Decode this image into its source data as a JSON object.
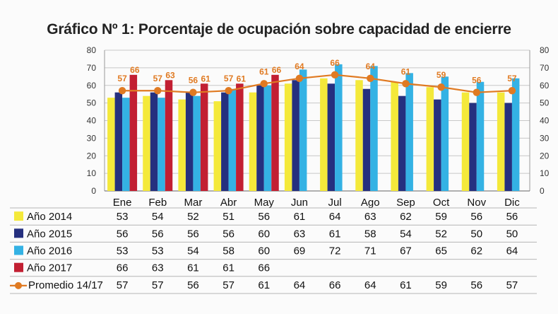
{
  "title": "Gráfico Nº 1: Porcentaje de ocupación sobre capacidad de encierre",
  "chart_data": {
    "type": "bar",
    "title": "Gráfico Nº 1: Porcentaje de ocupación sobre capacidad de encierre",
    "categories": [
      "Ene",
      "Feb",
      "Mar",
      "Abr",
      "May",
      "Jun",
      "Jul",
      "Ago",
      "Sep",
      "Oct",
      "Nov",
      "Dic"
    ],
    "ylim": [
      0,
      80
    ],
    "yticks": [
      0,
      10,
      20,
      30,
      40,
      50,
      60,
      70,
      80
    ],
    "grid": true,
    "legend_placement": "table below chart",
    "series": [
      {
        "name": "Año 2014",
        "type": "bar",
        "color": "#f4e93a",
        "values": [
          53,
          54,
          52,
          51,
          56,
          61,
          64,
          63,
          62,
          59,
          56,
          56
        ]
      },
      {
        "name": "Año 2015",
        "type": "bar",
        "color": "#25307f",
        "values": [
          56,
          56,
          56,
          56,
          60,
          63,
          61,
          58,
          54,
          52,
          50,
          50
        ]
      },
      {
        "name": "Año 2016",
        "type": "bar",
        "color": "#34b2e4",
        "values": [
          53,
          53,
          54,
          58,
          60,
          69,
          72,
          71,
          67,
          65,
          62,
          64
        ]
      },
      {
        "name": "Año 2017",
        "type": "bar",
        "color": "#c21f32",
        "values": [
          66,
          63,
          61,
          61,
          66,
          null,
          null,
          null,
          null,
          null,
          null,
          null
        ]
      },
      {
        "name": "Promedio 14/17",
        "type": "line",
        "color": "#e07a22",
        "values": [
          57,
          57,
          56,
          57,
          61,
          64,
          66,
          64,
          61,
          59,
          56,
          57
        ]
      }
    ],
    "line_labels_2017": [
      66,
      63,
      61,
      61,
      66
    ]
  }
}
